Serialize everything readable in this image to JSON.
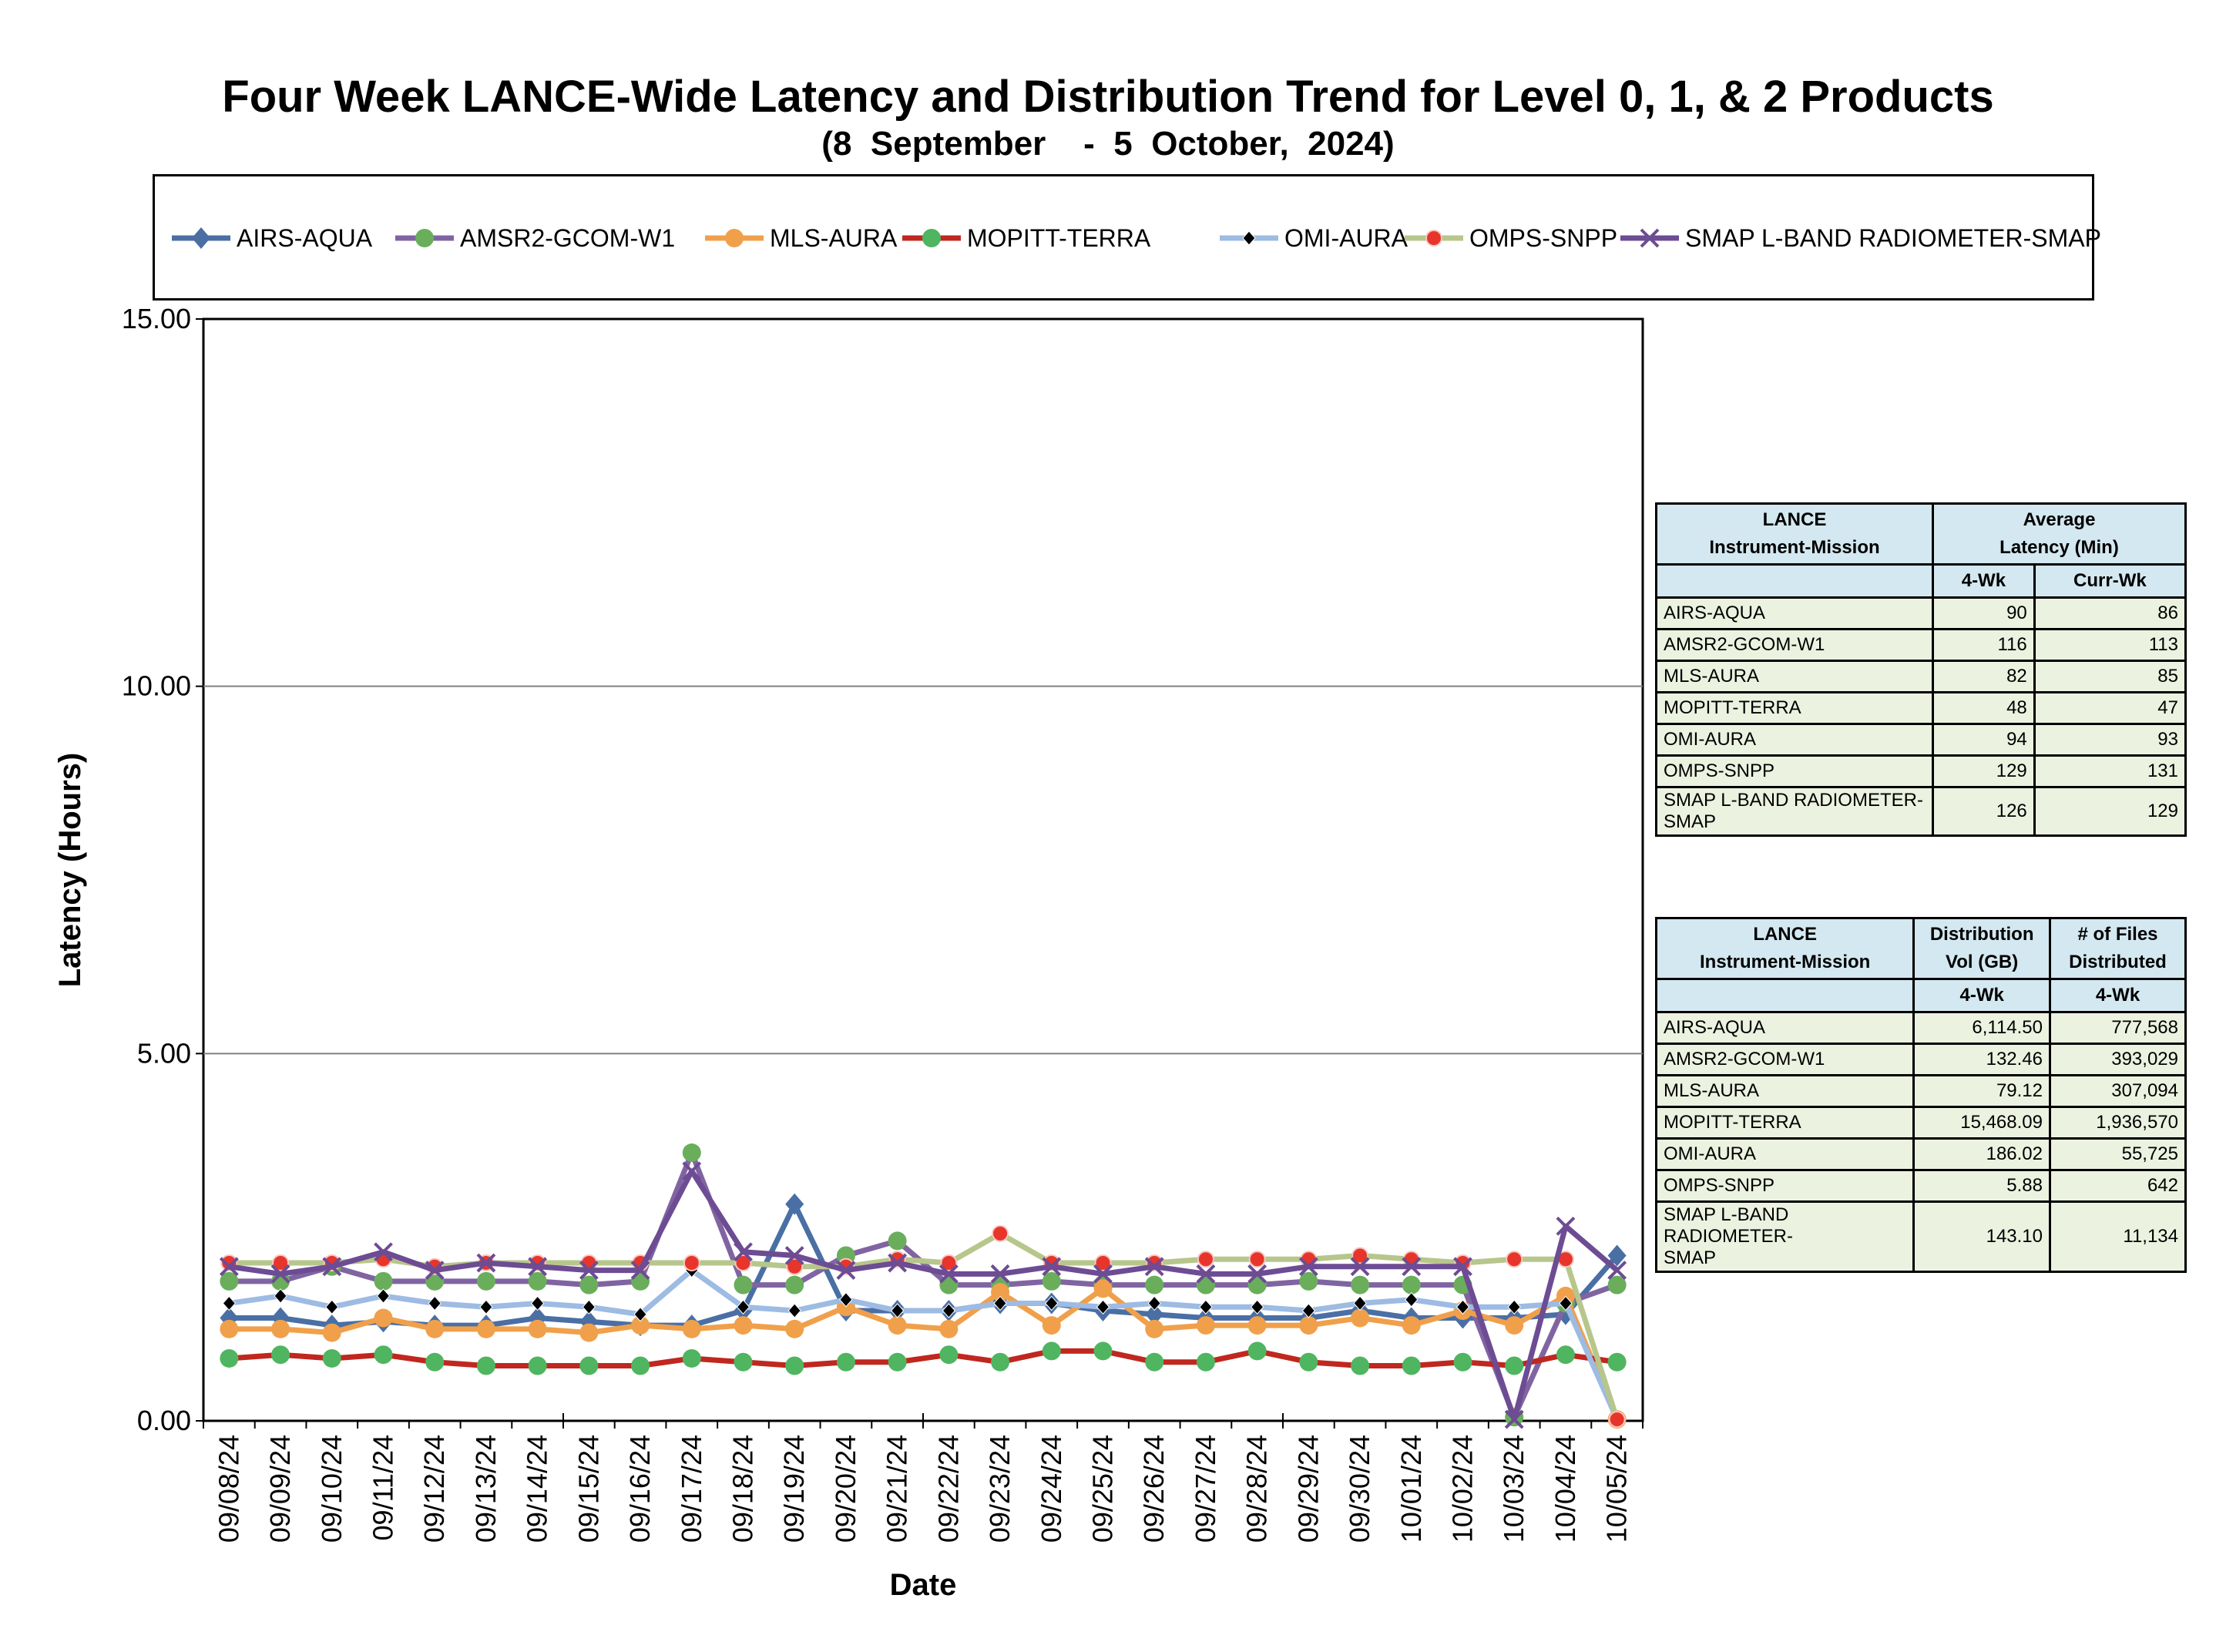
{
  "title": "Four Week LANCE-Wide Latency and Distribution Trend for Level 0, 1, & 2 Products",
  "subtitle": "(8  September    -  5  October,  2024)",
  "chart_data": {
    "type": "line",
    "xlabel": "Date",
    "ylabel": "Latency (Hours)",
    "ylim": [
      0,
      15
    ],
    "yticks": [
      "0.00",
      "5.00",
      "10.00",
      "15.00"
    ],
    "grid": true,
    "legend_position": "top",
    "categories": [
      "09/08/24",
      "09/09/24",
      "09/10/24",
      "09/11/24",
      "09/12/24",
      "09/13/24",
      "09/14/24",
      "09/15/24",
      "09/16/24",
      "09/17/24",
      "09/18/24",
      "09/19/24",
      "09/20/24",
      "09/21/24",
      "09/22/24",
      "09/23/24",
      "09/24/24",
      "09/25/24",
      "09/26/24",
      "09/27/24",
      "09/28/24",
      "09/29/24",
      "09/30/24",
      "10/01/24",
      "10/02/24",
      "10/03/24",
      "10/04/24",
      "10/05/24"
    ],
    "series": [
      {
        "name": "AIRS-AQUA",
        "color": "#4a6fa5",
        "marker": "diamond",
        "marker_color": "#4a6fa5",
        "values": [
          1.4,
          1.4,
          1.3,
          1.35,
          1.3,
          1.3,
          1.4,
          1.35,
          1.3,
          1.3,
          1.5,
          2.95,
          1.5,
          1.5,
          1.5,
          1.6,
          1.6,
          1.5,
          1.45,
          1.4,
          1.4,
          1.4,
          1.5,
          1.4,
          1.4,
          1.4,
          1.45,
          2.25
        ]
      },
      {
        "name": "AMSR2-GCOM-W1",
        "color": "#8064a2",
        "marker": "circle",
        "marker_color": "#6aae5c",
        "values": [
          1.9,
          1.9,
          2.1,
          1.9,
          1.9,
          1.9,
          1.9,
          1.85,
          1.9,
          3.65,
          1.85,
          1.85,
          2.25,
          2.45,
          1.85,
          1.85,
          1.9,
          1.85,
          1.85,
          1.85,
          1.85,
          1.9,
          1.85,
          1.85,
          1.85,
          0.05,
          1.6,
          1.85
        ]
      },
      {
        "name": "MLS-AURA",
        "color": "#f0a04b",
        "marker": "circle",
        "marker_color": "#f0a04b",
        "values": [
          1.25,
          1.25,
          1.2,
          1.4,
          1.25,
          1.25,
          1.25,
          1.2,
          1.3,
          1.25,
          1.3,
          1.25,
          1.55,
          1.3,
          1.25,
          1.75,
          1.3,
          1.8,
          1.25,
          1.3,
          1.3,
          1.3,
          1.4,
          1.3,
          1.5,
          1.3,
          1.7,
          0.02
        ]
      },
      {
        "name": "MOPITT-TERRA",
        "color": "#c0271f",
        "marker": "circle",
        "marker_color": "#4fb560",
        "values": [
          0.85,
          0.9,
          0.85,
          0.9,
          0.8,
          0.75,
          0.75,
          0.75,
          0.75,
          0.85,
          0.8,
          0.75,
          0.8,
          0.8,
          0.9,
          0.8,
          0.95,
          0.95,
          0.8,
          0.8,
          0.95,
          0.8,
          0.75,
          0.75,
          0.8,
          0.75,
          0.9,
          0.8
        ]
      },
      {
        "name": "OMI-AURA",
        "color": "#9dbbe3",
        "marker": "diamond-small",
        "marker_color": "#000000",
        "values": [
          1.6,
          1.7,
          1.55,
          1.7,
          1.6,
          1.55,
          1.6,
          1.55,
          1.45,
          2.05,
          1.55,
          1.5,
          1.65,
          1.5,
          1.5,
          1.6,
          1.6,
          1.55,
          1.6,
          1.55,
          1.55,
          1.5,
          1.6,
          1.65,
          1.55,
          1.55,
          1.6,
          0.02
        ]
      },
      {
        "name": "OMPS-SNPP",
        "color": "#b7c68b",
        "marker": "circle-small",
        "marker_color": "#e8352b",
        "values": [
          2.15,
          2.15,
          2.15,
          2.2,
          2.1,
          2.15,
          2.15,
          2.15,
          2.15,
          2.15,
          2.15,
          2.1,
          2.1,
          2.2,
          2.15,
          2.55,
          2.15,
          2.15,
          2.15,
          2.2,
          2.2,
          2.2,
          2.25,
          2.2,
          2.15,
          2.2,
          2.2,
          0.02
        ]
      },
      {
        "name": "SMAP L-BAND RADIOMETER-SMAP",
        "color": "#6d4c93",
        "marker": "x",
        "marker_color": "#6d4c93",
        "values": [
          2.1,
          2.0,
          2.1,
          2.3,
          2.05,
          2.15,
          2.1,
          2.05,
          2.05,
          3.4,
          2.3,
          2.25,
          2.05,
          2.15,
          2.0,
          2.0,
          2.1,
          2.0,
          2.1,
          2.0,
          2.0,
          2.1,
          2.1,
          2.1,
          2.1,
          0.02,
          2.65,
          2.05
        ]
      }
    ]
  },
  "latency_table": {
    "col1": [
      "LANCE",
      "Instrument-Mission"
    ],
    "col2": [
      "Average",
      "Latency (Min)"
    ],
    "sub": [
      "4-Wk",
      "Curr-Wk"
    ],
    "rows": [
      {
        "name": "AIRS-AQUA",
        "a": "90",
        "b": "86"
      },
      {
        "name": "AMSR2-GCOM-W1",
        "a": "116",
        "b": "113"
      },
      {
        "name": "MLS-AURA",
        "a": "82",
        "b": "85"
      },
      {
        "name": "MOPITT-TERRA",
        "a": "48",
        "b": "47"
      },
      {
        "name": "OMI-AURA",
        "a": "94",
        "b": "93"
      },
      {
        "name": "OMPS-SNPP",
        "a": "129",
        "b": "131"
      },
      {
        "name": "SMAP L-BAND RADIOMETER-",
        "name2": "SMAP",
        "a": "126",
        "b": "129"
      }
    ]
  },
  "distribution_table": {
    "col1": [
      "LANCE",
      "Instrument-Mission"
    ],
    "col2": [
      "Distribution",
      "Vol (GB)"
    ],
    "col3": [
      "# of Files",
      "Distributed"
    ],
    "sub": [
      "4-Wk",
      "4-Wk"
    ],
    "rows": [
      {
        "name": "AIRS-AQUA",
        "a": "6,114.50",
        "b": "777,568"
      },
      {
        "name": "AMSR2-GCOM-W1",
        "a": "132.46",
        "b": "393,029"
      },
      {
        "name": "MLS-AURA",
        "a": "79.12",
        "b": "307,094"
      },
      {
        "name": "MOPITT-TERRA",
        "a": "15,468.09",
        "b": "1,936,570"
      },
      {
        "name": "OMI-AURA",
        "a": "186.02",
        "b": "55,725"
      },
      {
        "name": "OMPS-SNPP",
        "a": "5.88",
        "b": "642"
      },
      {
        "name": "SMAP L-BAND RADIOMETER-",
        "name2": "SMAP",
        "a": "143.10",
        "b": "11,134"
      }
    ]
  }
}
